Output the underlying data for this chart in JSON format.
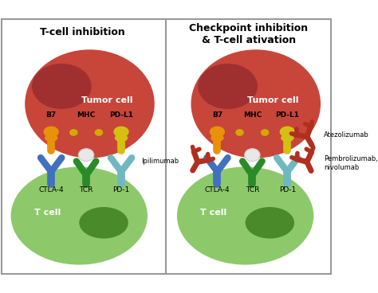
{
  "title_left": "T-cell inhibition",
  "title_right": "Checkpoint inhibition\n& T-cell ativation",
  "tumor_cell_label": "Tumor cell",
  "t_cell_label": "T cell",
  "tumor_color": "#C8453A",
  "tumor_dark_color": "#A03030",
  "t_cell_color": "#8DC96A",
  "t_cell_nucleus_color": "#4A8A2A",
  "b7_color": "#E8920A",
  "mhc_stem_color": "#C8453A",
  "mhc_head_color": "#C8453A",
  "mhc_tip_color": "#D4A800",
  "pdl1_color": "#D4C010",
  "ctla4_color": "#4070C0",
  "tcr_color": "#2A8A2A",
  "pd1_color": "#70B8C0",
  "antibody_color": "#B03020",
  "separator_color": "#999999",
  "background_color": "#FFFFFF",
  "border_color": "#999999",
  "white_ball_color": "#E8E8E8"
}
